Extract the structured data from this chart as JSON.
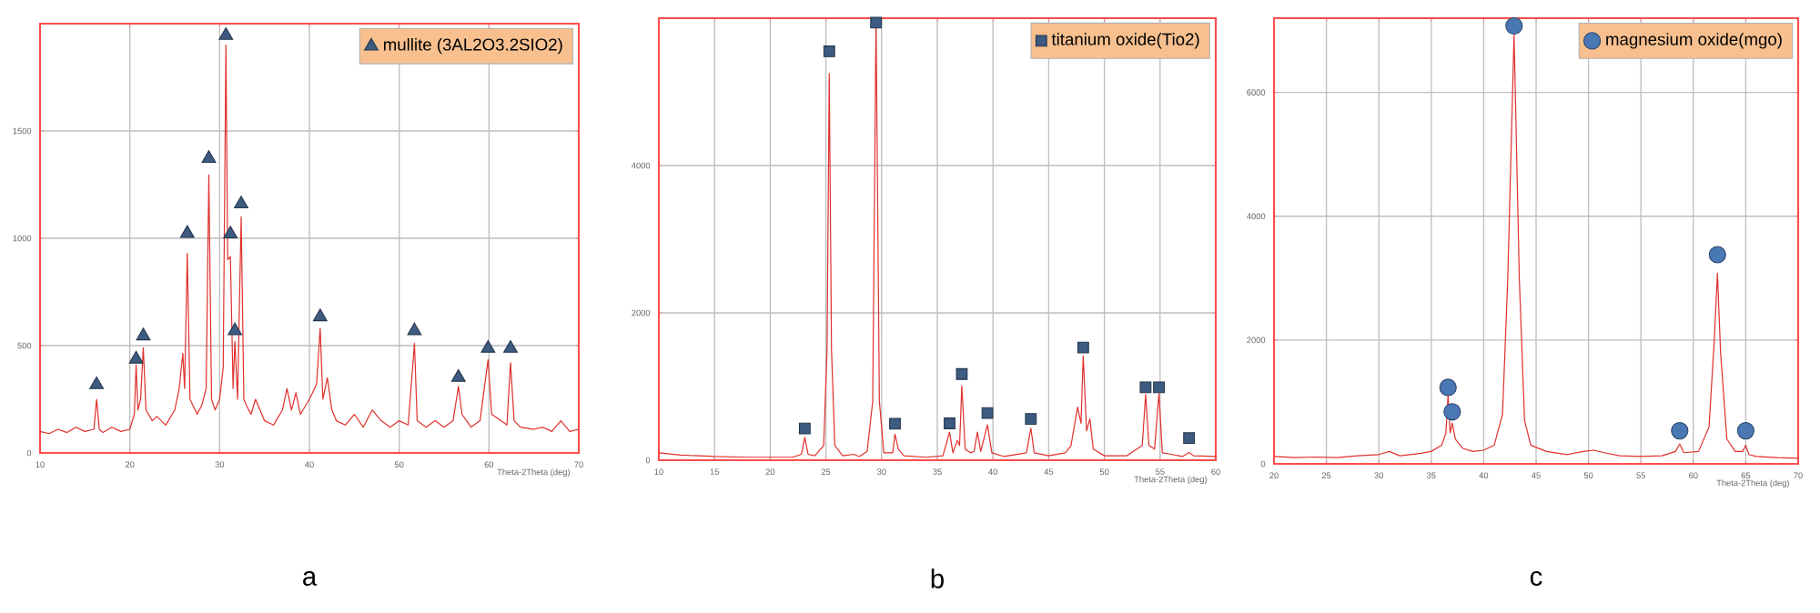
{
  "chart_data": [
    {
      "type": "line",
      "xlabel": "Theta-2Theta (deg)",
      "xlim": [
        10,
        70
      ],
      "xticks": [
        10,
        20,
        30,
        40,
        50,
        60,
        70
      ],
      "ylim": [
        0,
        2000
      ],
      "yticks": [
        0,
        500,
        1000,
        1500
      ],
      "grid": true,
      "legend": "top right",
      "annotations": [
        "a"
      ],
      "series": [
        {
          "color": "#e0302c",
          "x": [
            10,
            11,
            12,
            13,
            14,
            15,
            16,
            16.3,
            16.6,
            17,
            18,
            19,
            20,
            20.5,
            20.7,
            20.9,
            21.2,
            21.5,
            21.8,
            22.5,
            23,
            24,
            25,
            25.5,
            25.9,
            26.1,
            26.4,
            26.7,
            27.5,
            28,
            28.5,
            28.8,
            29.1,
            29.5,
            30,
            30.4,
            30.7,
            30.9,
            31.2,
            31.5,
            31.7,
            32,
            32.4,
            32.7,
            33,
            33.5,
            34,
            35,
            36,
            37,
            37.5,
            38,
            38.5,
            39,
            40,
            40.8,
            41.2,
            41.5,
            42,
            42.5,
            43,
            44,
            45,
            46,
            47,
            48,
            49,
            50,
            51,
            51.7,
            52,
            53,
            54,
            55,
            56,
            56.6,
            57,
            58,
            59,
            59.9,
            60.3,
            61,
            62,
            62.4,
            62.8,
            63.5,
            65,
            66,
            67,
            68,
            69,
            70
          ],
          "values": [
            100,
            90,
            110,
            95,
            120,
            100,
            110,
            250,
            110,
            95,
            120,
            100,
            110,
            180,
            410,
            200,
            250,
            490,
            200,
            150,
            170,
            130,
            200,
            300,
            465,
            300,
            930,
            250,
            180,
            220,
            300,
            1295,
            250,
            200,
            250,
            400,
            1900,
            900,
            915,
            300,
            520,
            250,
            1100,
            250,
            220,
            180,
            250,
            150,
            130,
            200,
            300,
            200,
            280,
            180,
            250,
            320,
            580,
            250,
            350,
            200,
            150,
            130,
            180,
            120,
            200,
            150,
            120,
            150,
            130,
            510,
            150,
            120,
            150,
            120,
            150,
            310,
            180,
            120,
            150,
            435,
            180,
            160,
            130,
            420,
            150,
            120,
            110,
            120,
            100,
            150,
            100,
            110
          ]
        },
        {
          "type": "scatter",
          "name": "mullite (3AL2O3.2SIO2)",
          "color": "#3d5a80",
          "marker": "triangle",
          "x": [
            16.3,
            20.7,
            21.5,
            26.4,
            28.8,
            30.7,
            31.2,
            31.7,
            32.4,
            41.2,
            51.7,
            56.6,
            59.9,
            62.4
          ],
          "values": [
            318,
            437,
            545,
            1023,
            1372,
            1945,
            1020,
            569,
            1160,
            634,
            569,
            352,
            487,
            487
          ]
        }
      ]
    },
    {
      "type": "line",
      "xlabel": "Theta-2Theta (deg)",
      "xlim": [
        10,
        60
      ],
      "xticks": [
        10,
        15,
        20,
        25,
        30,
        35,
        40,
        45,
        50,
        55,
        60
      ],
      "ylim": [
        0,
        6000
      ],
      "yticks": [
        0,
        2000,
        4000
      ],
      "grid": true,
      "legend": "top right",
      "annotations": [
        "b"
      ],
      "series": [
        {
          "color": "#e0302c",
          "x": [
            10,
            12,
            15,
            18,
            20,
            22,
            22.8,
            23.1,
            23.4,
            24,
            24.8,
            25.1,
            25.3,
            25.5,
            25.8,
            26.5,
            27.5,
            28,
            28.7,
            29.2,
            29.5,
            29.8,
            30.2,
            31,
            31.2,
            31.5,
            32,
            34,
            35.5,
            36.1,
            36.4,
            36.8,
            37.0,
            37.2,
            37.5,
            38,
            38.3,
            38.6,
            38.9,
            39.5,
            39.9,
            41,
            43,
            43.4,
            43.7,
            45,
            46.5,
            47,
            47.6,
            47.9,
            48.1,
            48.4,
            48.7,
            49,
            50,
            52,
            53.4,
            53.7,
            54,
            54.5,
            54.9,
            55.2,
            56,
            57,
            57.6,
            58,
            60
          ],
          "values": [
            100,
            70,
            50,
            40,
            40,
            40,
            80,
            310,
            80,
            60,
            200,
            1500,
            5250,
            1500,
            200,
            60,
            80,
            50,
            120,
            800,
            5990,
            800,
            100,
            100,
            355,
            150,
            60,
            40,
            60,
            380,
            100,
            270,
            200,
            1010,
            150,
            100,
            120,
            380,
            120,
            480,
            100,
            50,
            100,
            435,
            100,
            60,
            100,
            200,
            720,
            500,
            1420,
            400,
            560,
            150,
            60,
            60,
            200,
            890,
            200,
            150,
            905,
            100,
            80,
            50,
            105,
            60,
            50
          ]
        },
        {
          "type": "scatter",
          "name": "titanium oxide(Tio2)",
          "color": "#3d5a80",
          "marker": "square",
          "x": [
            23.1,
            25.3,
            29.5,
            31.2,
            36.1,
            37.2,
            39.5,
            43.4,
            48.1,
            53.7,
            54.9,
            57.6
          ],
          "values": [
            430,
            5550,
            5940,
            495,
            500,
            1170,
            640,
            560,
            1530,
            990,
            990,
            300
          ]
        }
      ]
    },
    {
      "type": "line",
      "xlabel": "Theta-2Theta (deg)",
      "xlim": [
        20,
        70
      ],
      "xticks": [
        20,
        25,
        30,
        35,
        40,
        45,
        50,
        55,
        60,
        65,
        70
      ],
      "ylim": [
        0,
        7200
      ],
      "yticks": [
        0,
        2000,
        4000,
        6000
      ],
      "grid": true,
      "legend": "top right",
      "annotations": [
        "c"
      ],
      "series": [
        {
          "color": "#e0302c",
          "x": [
            20,
            22,
            24,
            26,
            28,
            30,
            31,
            32,
            33,
            34,
            35,
            36,
            36.4,
            36.6,
            36.8,
            37.0,
            37.3,
            38,
            39,
            40,
            41,
            41.8,
            42.3,
            42.9,
            43.4,
            43.9,
            44.5,
            46,
            48,
            49.5,
            50.5,
            51.5,
            53,
            55,
            57,
            58.3,
            58.7,
            59.1,
            60.5,
            61.5,
            62,
            62.3,
            62.6,
            63.2,
            64,
            64.7,
            65.0,
            65.3,
            66,
            68,
            70
          ],
          "values": [
            120,
            100,
            110,
            100,
            130,
            150,
            200,
            130,
            150,
            170,
            200,
            300,
            500,
            1110,
            500,
            660,
            400,
            250,
            200,
            220,
            300,
            800,
            3000,
            6940,
            3000,
            700,
            300,
            200,
            150,
            200,
            220,
            180,
            130,
            120,
            130,
            200,
            320,
            180,
            200,
            600,
            2000,
            3080,
            1800,
            400,
            200,
            200,
            300,
            150,
            120,
            100,
            90
          ]
        },
        {
          "type": "scatter",
          "name": "magnesium oxide(mgo)",
          "color": "#4a78b4",
          "marker": "circle",
          "x": [
            36.6,
            37.0,
            42.9,
            58.7,
            62.3,
            65.0
          ],
          "values": [
            1235,
            840,
            7075,
            535,
            3380,
            535
          ]
        }
      ]
    }
  ]
}
